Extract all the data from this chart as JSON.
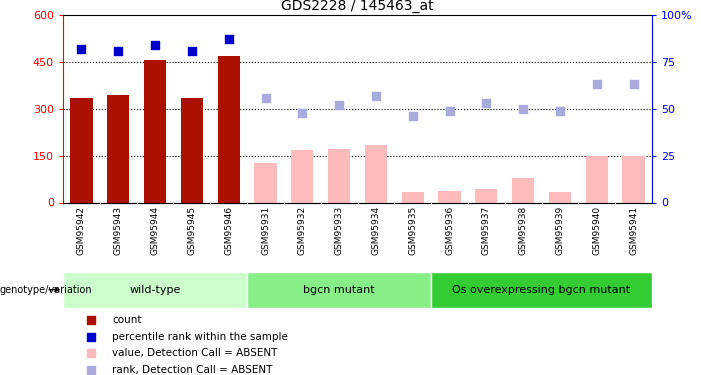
{
  "title": "GDS2228 / 145463_at",
  "samples": [
    "GSM95942",
    "GSM95943",
    "GSM95944",
    "GSM95945",
    "GSM95946",
    "GSM95931",
    "GSM95932",
    "GSM95933",
    "GSM95934",
    "GSM95935",
    "GSM95936",
    "GSM95937",
    "GSM95938",
    "GSM95939",
    "GSM95940",
    "GSM95941"
  ],
  "bar_values": [
    335,
    345,
    455,
    335,
    470,
    127,
    167,
    170,
    185,
    35,
    38,
    42,
    80,
    35,
    150,
    150
  ],
  "bar_present": [
    true,
    true,
    true,
    true,
    true,
    false,
    false,
    false,
    false,
    false,
    false,
    false,
    false,
    false,
    false,
    false
  ],
  "rank_values_present": [
    82,
    81,
    84,
    81,
    87
  ],
  "rank_values_absent": [
    56,
    48,
    52,
    57,
    46,
    49,
    53,
    50,
    49,
    63,
    63
  ],
  "groups": [
    {
      "label": "wild-type",
      "start": 0,
      "end": 4
    },
    {
      "label": "bgcn mutant",
      "start": 5,
      "end": 9
    },
    {
      "label": "Os overexpressing bgcn mutant",
      "start": 10,
      "end": 15
    }
  ],
  "group_colors": [
    "#ccffcc",
    "#88ee88",
    "#33cc33"
  ],
  "ylim_left": [
    0,
    600
  ],
  "ylim_right": [
    0,
    100
  ],
  "yticks_left": [
    0,
    150,
    300,
    450,
    600
  ],
  "yticks_right": [
    0,
    25,
    50,
    75,
    100
  ],
  "color_present_bar": "#aa1100",
  "color_absent_bar": "#ffbbbb",
  "color_present_rank": "#0000cc",
  "color_absent_rank": "#aaaadd",
  "background_color": "#ffffff",
  "legend_items": [
    {
      "label": "count",
      "color": "#aa1100"
    },
    {
      "label": "percentile rank within the sample",
      "color": "#0000cc"
    },
    {
      "label": "value, Detection Call = ABSENT",
      "color": "#ffbbbb"
    },
    {
      "label": "rank, Detection Call = ABSENT",
      "color": "#aaaadd"
    }
  ]
}
